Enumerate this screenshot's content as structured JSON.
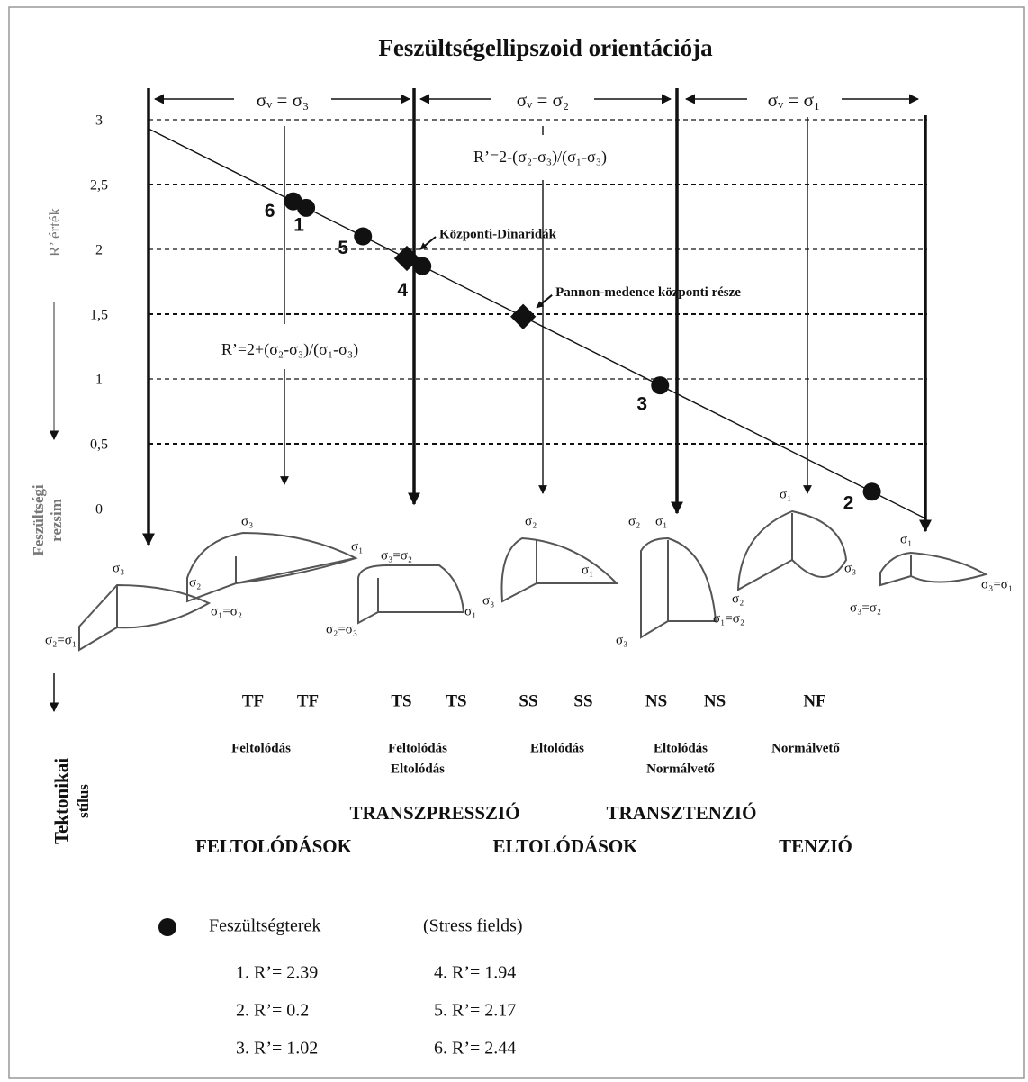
{
  "title": "Feszültségellipszoid orientációja",
  "regime_headers": [
    "σᵥ = σ₃",
    "σᵥ = σ₂",
    "σᵥ = σ₁"
  ],
  "formulas": [
    "R’=2-(σ₂-σ₃)/(σ₁-σ₃)",
    "R’=2+(σ₂-σ₃)/(σ₁-σ₃)"
  ],
  "y_axis": {
    "label": "R’ érték",
    "ticks": [
      3,
      {
        "value": 2.5,
        "label": "2,5"
      },
      2,
      {
        "value": 1.5,
        "label": "1,5"
      },
      1,
      {
        "value": 0.5,
        "label": "0,5"
      },
      0
    ]
  },
  "side_labels": {
    "regime": [
      "Feszültségi",
      "rezsim"
    ],
    "style": [
      "Tektonikai",
      "stílus"
    ]
  },
  "stress_fields": [
    {
      "label": "1",
      "value": 2.39
    },
    {
      "label": "2",
      "value": 0.2
    },
    {
      "label": "3",
      "value": 1.02
    },
    {
      "label": "4",
      "value": 1.94
    },
    {
      "label": "5",
      "value": 2.17
    },
    {
      "label": "6",
      "value": 2.44
    }
  ],
  "localities": [
    {
      "label": "Központi-Dinaridák",
      "value": 2.0
    },
    {
      "label": "Pannon-medence központi része",
      "value": 1.55
    }
  ],
  "ellipsoid_labels": [
    "σ₃",
    "σ₂=σ₁",
    "σ₃",
    "σ₁",
    "σ₂",
    "σ₁=σ₂",
    "σ₃=σ₂",
    "σ₂=σ₃",
    "σ₁",
    "σ₂",
    "σ₁",
    "σ₃",
    "σ₂",
    "σ₁",
    "σ₃",
    "σ₁=σ₂",
    "σ₁",
    "σ₃",
    "σ₂",
    "σ₁",
    "σ₃=σ₂",
    "σ₃=σ₁"
  ],
  "regime_codes": [
    "TF",
    "TF",
    "TS",
    "TS",
    "SS",
    "SS",
    "NS",
    "NS",
    "NF"
  ],
  "fault_types": [
    [
      "Feltolódás"
    ],
    [
      "Feltolódás",
      "Eltolódás"
    ],
    [
      "Eltolódás"
    ],
    [
      "Eltolódás",
      "Normálvető"
    ],
    [
      "Normálvető"
    ]
  ],
  "tectonic_styles": [
    "TRANSZPRESSZIÓ",
    "TRANSZTENZIÓ",
    "FELTOLÓDÁSOK",
    "ELTOLÓDÁSOK",
    "TENZIÓ"
  ],
  "legend": {
    "title": "Feszültségterek",
    "subtitle": "(Stress fields)",
    "entries": [
      "1. R’= 2.39",
      "2. R’= 0.2",
      "3. R’= 1.02",
      "4. R’= 1.94",
      "5. R’= 2.17",
      "6. R’= 2.44"
    ]
  }
}
